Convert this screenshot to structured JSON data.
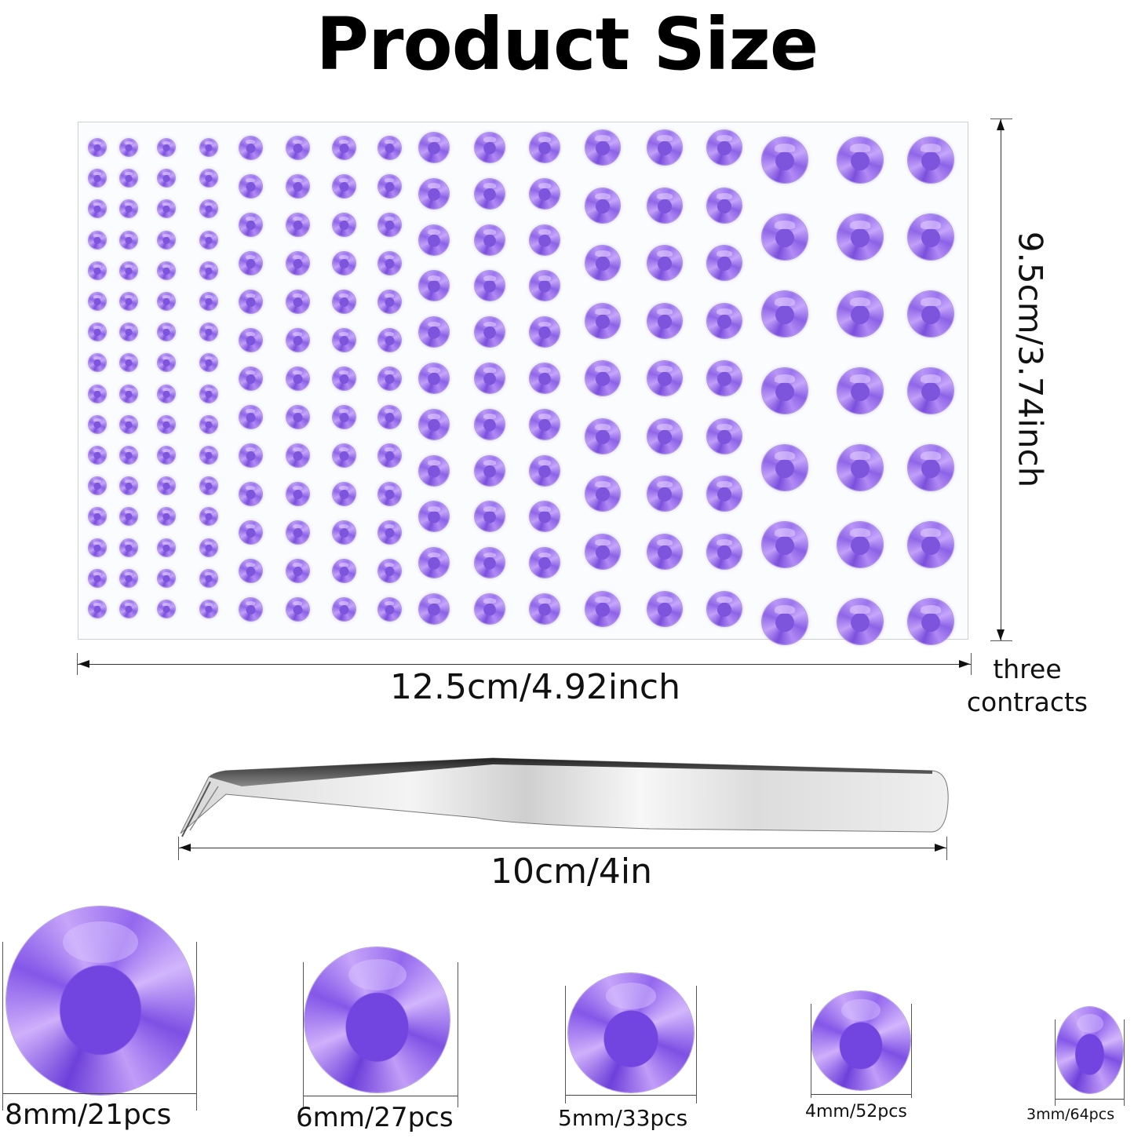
{
  "title": "Product Size",
  "sheet": {
    "width_label": "12.5cm/4.92inch",
    "height_label": "9.5cm/3.74inch",
    "note_label_line1": "three",
    "note_label_line2": "contracts",
    "gem_color": "#9a74ee",
    "groups": [
      {
        "size": "3mm",
        "columns": 4,
        "rows": 16,
        "count": 64
      },
      {
        "size": "4mm",
        "columns": 4,
        "rows": 13,
        "count": 52
      },
      {
        "size": "5mm",
        "columns": 3,
        "rows": 11,
        "count": 33
      },
      {
        "size": "6mm",
        "columns": 3,
        "rows": 9,
        "count": 27
      },
      {
        "size": "8mm",
        "columns": 3,
        "rows": 7,
        "count": 21
      }
    ]
  },
  "tweezers": {
    "length_label": "10cm/4in"
  },
  "size_samples": [
    {
      "label": "8mm/21pcs"
    },
    {
      "label": "6mm/27pcs"
    },
    {
      "label": "5mm/33pcs"
    },
    {
      "label": "4mm/52pcs"
    },
    {
      "label": "3mm/64pcs"
    }
  ]
}
